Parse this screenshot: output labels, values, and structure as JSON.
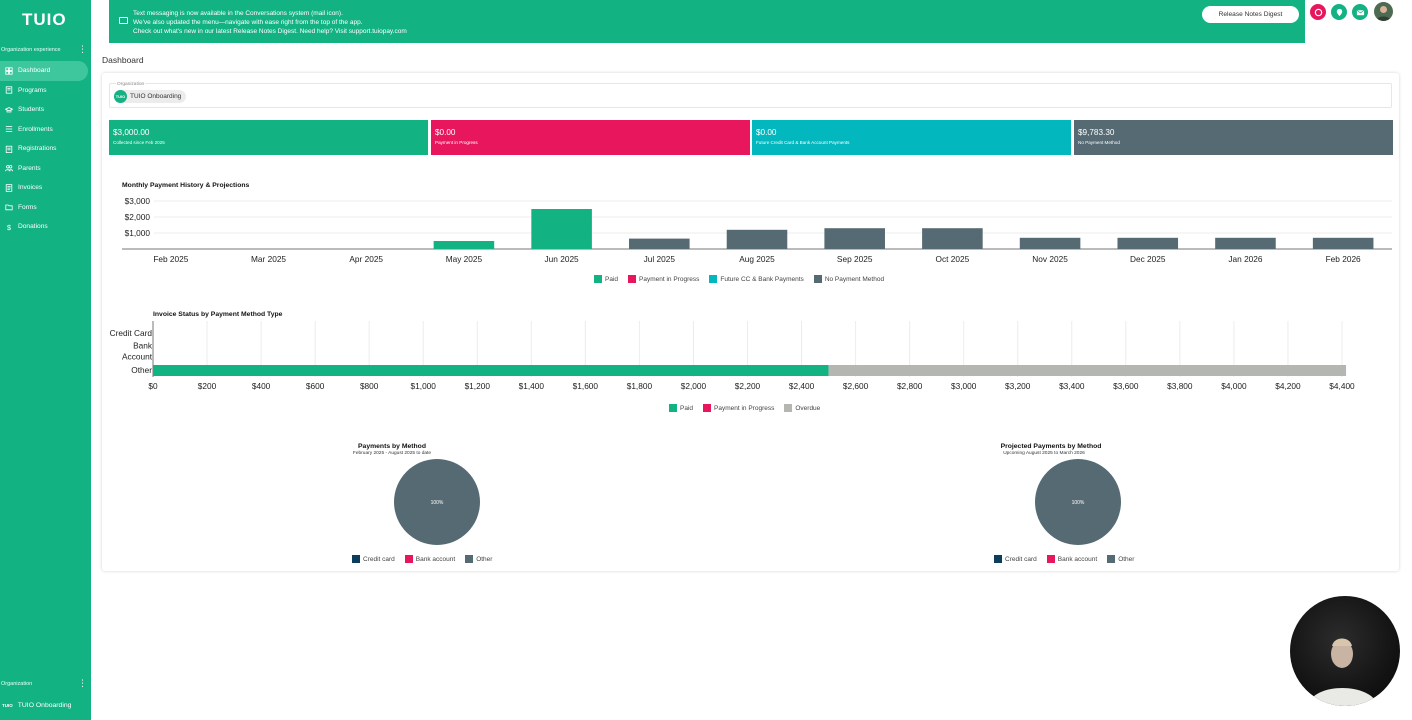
{
  "app": {
    "logo": "TUIO"
  },
  "sidebar": {
    "section_top": "Organization experience",
    "items": [
      {
        "label": "Dashboard",
        "active": true,
        "icon": "dashboard-icon"
      },
      {
        "label": "Programs",
        "active": false,
        "icon": "book-icon"
      },
      {
        "label": "Students",
        "active": false,
        "icon": "graduation-cap-icon"
      },
      {
        "label": "Enrollments",
        "active": false,
        "icon": "list-icon"
      },
      {
        "label": "Registrations",
        "active": false,
        "icon": "clipboard-icon"
      },
      {
        "label": "Parents",
        "active": false,
        "icon": "people-icon"
      },
      {
        "label": "Invoices",
        "active": false,
        "icon": "invoice-icon"
      },
      {
        "label": "Forms",
        "active": false,
        "icon": "folder-icon"
      },
      {
        "label": "Donations",
        "active": false,
        "icon": "dollar-icon"
      }
    ],
    "section_bottom": "Organization",
    "org_logo": "TUIO",
    "org_name": "TUIO Onboarding"
  },
  "banner": {
    "line1": "Text messaging is now available in the Conversations system (mail icon).",
    "line2": "We've also updated the menu—navigate with ease right from the top of the app.",
    "line3": "Check out what's new in our latest Release Notes Digest. Need help? Visit support.tuiopay.com",
    "button": "Release Notes Digest"
  },
  "header_icons": [
    "alert-icon",
    "location-icon",
    "mail-icon",
    "avatar"
  ],
  "page": {
    "title": "Dashboard"
  },
  "org_select": {
    "label": "Organization",
    "chip_logo": "TUIO",
    "value": "TUIO Onboarding"
  },
  "stats": [
    {
      "value": "$3,000.00",
      "label": "Collected since Feb 2025",
      "color": "#12b283"
    },
    {
      "value": "$0.00",
      "label": "Payment in Progress",
      "color": "#e8175d"
    },
    {
      "value": "$0.00",
      "label": "Future Credit Card & Bank Account Payments",
      "color": "#03b7be"
    },
    {
      "value": "$9,783.30",
      "label": "No Payment Method",
      "color": "#566a73"
    }
  ],
  "colors": {
    "paid": "#12b283",
    "progress": "#e8175d",
    "future": "#03b7be",
    "none": "#566a73",
    "overdue": "#b3b6b1",
    "credit": "#0d3d5c"
  },
  "chart_data": [
    {
      "type": "bar",
      "title": "Monthly Payment History & Projections",
      "categories": [
        "Feb 2025",
        "Mar 2025",
        "Apr 2025",
        "May 2025",
        "Jun 2025",
        "Jul 2025",
        "Aug 2025",
        "Sep 2025",
        "Oct 2025",
        "Nov 2025",
        "Dec 2025",
        "Jan 2026",
        "Feb 2026"
      ],
      "series": [
        {
          "name": "Paid",
          "values": [
            0,
            0,
            0,
            500,
            2500,
            0,
            0,
            0,
            0,
            0,
            0,
            0,
            0
          ]
        },
        {
          "name": "Payment in Progress",
          "values": [
            0,
            0,
            0,
            0,
            0,
            0,
            0,
            0,
            0,
            0,
            0,
            0,
            0
          ]
        },
        {
          "name": "Future CC & Bank Payments",
          "values": [
            0,
            0,
            0,
            0,
            0,
            0,
            0,
            0,
            0,
            0,
            0,
            0,
            0
          ]
        },
        {
          "name": "No Payment Method",
          "values": [
            0,
            0,
            0,
            0,
            0,
            650,
            1200,
            1300,
            1300,
            700,
            700,
            700,
            700
          ]
        }
      ],
      "yticks": [
        "$1,000",
        "$2,000",
        "$3,000"
      ],
      "ylim": [
        0,
        3000
      ]
    },
    {
      "type": "bar",
      "orientation": "horizontal",
      "title": "Invoice Status by Payment Method Type",
      "categories": [
        "Credit Card",
        "Bank Account",
        "Other"
      ],
      "series": [
        {
          "name": "Paid",
          "values": [
            0,
            0,
            2500
          ]
        },
        {
          "name": "Payment in Progress",
          "values": [
            0,
            0,
            0
          ]
        },
        {
          "name": "Overdue",
          "values": [
            0,
            0,
            1915
          ]
        }
      ],
      "xticks": [
        "$0",
        "$200",
        "$400",
        "$600",
        "$800",
        "$1,000",
        "$1,200",
        "$1,400",
        "$1,600",
        "$1,800",
        "$2,000",
        "$2,200",
        "$2,400",
        "$2,600",
        "$2,800",
        "$3,000",
        "$3,200",
        "$3,400",
        "$3,600",
        "$3,800",
        "$4,000",
        "$4,200",
        "$4,400"
      ],
      "xlim": [
        0,
        4400
      ]
    },
    {
      "type": "pie",
      "title": "Payments by Method",
      "subtitle": "February 2025 - August 2025 to date",
      "slices": [
        {
          "label": "Credit card",
          "value": 0
        },
        {
          "label": "Bank account",
          "value": 0
        },
        {
          "label": "Other",
          "value": 100
        }
      ],
      "slice_label": "100%"
    },
    {
      "type": "pie",
      "title": "Projected Payments by Method",
      "subtitle": "Upcoming August 2025 to March 2026",
      "slices": [
        {
          "label": "Credit card",
          "value": 0
        },
        {
          "label": "Bank account",
          "value": 0
        },
        {
          "label": "Other",
          "value": 100
        }
      ],
      "slice_label": "100%"
    }
  ]
}
